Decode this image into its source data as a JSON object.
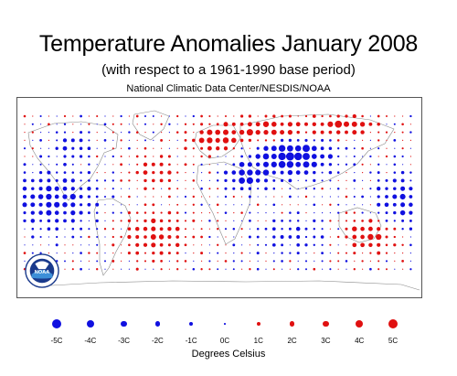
{
  "title": "Temperature Anomalies January 2008",
  "subtitle": "(with respect to a 1961-1990 base period)",
  "source": "National Climatic Data Center/NESDIS/NOAA",
  "logo_text": "NOAA",
  "colors": {
    "cold": "#1010e0",
    "warm": "#e01010",
    "land": "#888888",
    "frame": "#555555"
  },
  "legend": {
    "units_label": "Degrees Celsius",
    "items": [
      {
        "label": "-5C",
        "value": -5,
        "color": "#1010e0"
      },
      {
        "label": "-4C",
        "value": -4,
        "color": "#1010e0"
      },
      {
        "label": "-3C",
        "value": -3,
        "color": "#1010e0"
      },
      {
        "label": "-2C",
        "value": -2,
        "color": "#1010e0"
      },
      {
        "label": "-1C",
        "value": -1,
        "color": "#1010e0"
      },
      {
        "label": "0C",
        "value": 0,
        "color": "#1010e0"
      },
      {
        "label": "1C",
        "value": 1,
        "color": "#e01010"
      },
      {
        "label": "2C",
        "value": 2,
        "color": "#e01010"
      },
      {
        "label": "3C",
        "value": 3,
        "color": "#e01010"
      },
      {
        "label": "4C",
        "value": 4,
        "color": "#e01010"
      },
      {
        "label": "5C",
        "value": 5,
        "color": "#e01010"
      }
    ]
  }
}
